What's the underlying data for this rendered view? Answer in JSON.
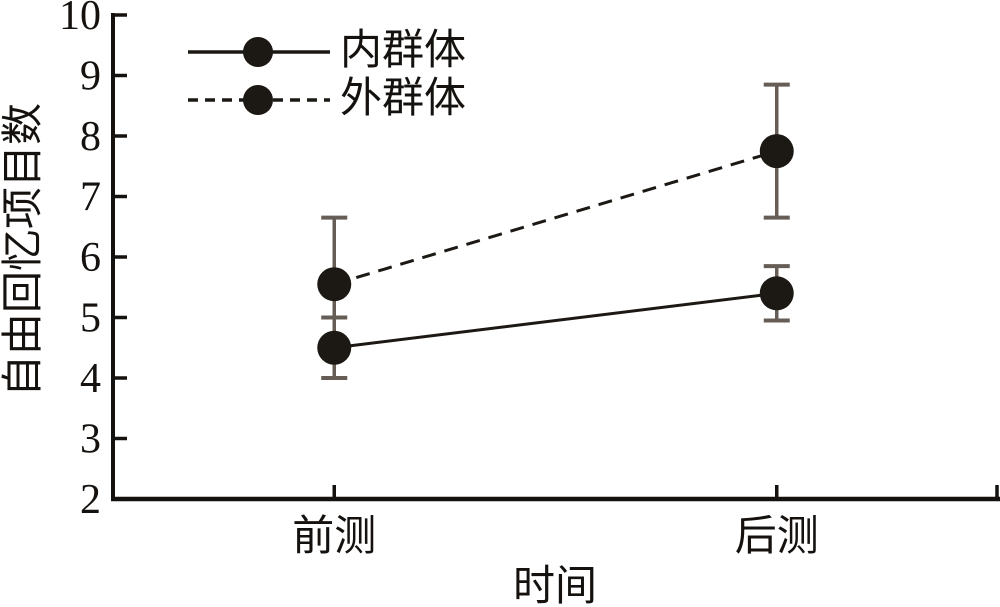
{
  "figure": {
    "background": "#ffffff",
    "axis_color": "#14110e",
    "text_color": "#14110e",
    "series_color": "#1c1814",
    "error_bar_color": "#655d56"
  },
  "chart_data": {
    "type": "line",
    "title": "",
    "xlabel": "时间",
    "ylabel": "自由回忆项目数",
    "categories": [
      "前测",
      "后测"
    ],
    "ylim": [
      2,
      10
    ],
    "yticks": [
      2,
      3,
      4,
      5,
      6,
      7,
      8,
      9,
      10
    ],
    "grid": false,
    "legend_position": "upper-left-inside",
    "series": [
      {
        "name": "内群体",
        "line_style": "solid",
        "marker": "filled-circle",
        "values": [
          4.5,
          5.4
        ],
        "errors": [
          0.5,
          0.45
        ]
      },
      {
        "name": "外群体",
        "line_style": "dashed",
        "marker": "filled-circle",
        "values": [
          5.55,
          7.75
        ],
        "errors": [
          1.1,
          1.1
        ]
      }
    ]
  }
}
